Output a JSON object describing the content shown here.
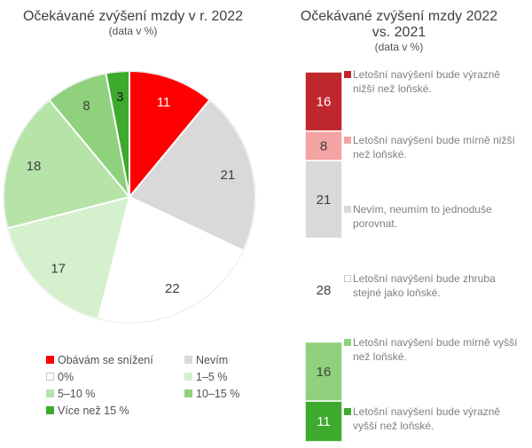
{
  "pie_chart": {
    "title": "Očekávané zvýšení mzdy v r. 2022",
    "subtitle": "(data v %)"
  },
  "bar_chart": {
    "title_line1": "Očekávané zvýšení mzdy 2022",
    "title_line2": "vs. 2021",
    "subtitle": "(data v %)"
  },
  "chart_data": [
    {
      "type": "pie",
      "title": "Očekávané zvýšení mzdy v r. 2022",
      "subtitle": "(data v %)",
      "categories": [
        "Obávám se snížení",
        "Nevím",
        "0%",
        "1–5 %",
        "5–10 %",
        "10–15 %",
        "Více než 15 %"
      ],
      "values": [
        11,
        21,
        22,
        17,
        18,
        8,
        3
      ],
      "colors": [
        "#ff0000",
        "#d9d9d9",
        "#ffffff",
        "#d4f0cc",
        "#b5e3a8",
        "#8fd17c",
        "#3daa2d"
      ],
      "legend_position": "bottom"
    },
    {
      "type": "bar",
      "stacked": true,
      "title": "Očekávané zvýšení mzdy 2022 vs. 2021",
      "subtitle": "(data v %)",
      "categories": [
        "Letošní navýšení bude výrazně nižší než loňské.",
        "Letošní navýšení bude mírně nižší než loňské.",
        "Nevím, neumím to jednoduše porovnat.",
        "Letošní navýšení bude zhruba stejné jako loňské.",
        "Letošní navýšení bude mírně vyšší než loňské.",
        "Letošní navýšení bude výrazně vyšší než loňské."
      ],
      "values": [
        16,
        8,
        21,
        28,
        16,
        11
      ],
      "colors": [
        "#c0272d",
        "#f4a3a3",
        "#d9d9d9",
        "#ffffff",
        "#8fd17c",
        "#3daa2d"
      ],
      "legend_position": "right"
    }
  ]
}
